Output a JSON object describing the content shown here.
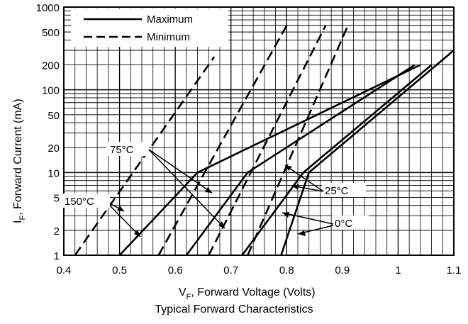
{
  "chart_data": {
    "type": "line",
    "title": "Typical Forward Characteristics",
    "xlabel": {
      "main": "V",
      "sub": "F",
      "rest": ",  Forward Voltage (Volts)"
    },
    "ylabel": {
      "main": "I",
      "sub": "F",
      "rest": ",  Forward Current (mA)"
    },
    "xlim": [
      0.4,
      1.1
    ],
    "ylim": [
      1,
      1000
    ],
    "yscale": "log",
    "grid": true,
    "legend_position": "top-left",
    "x_ticks": [
      0.4,
      0.5,
      0.6,
      0.7,
      0.8,
      0.9,
      1,
      1.1
    ],
    "x_tick_labels": [
      "0.4",
      "0.5",
      "0.6",
      "0.7",
      "0.8",
      "0.9",
      "1",
      "1.1"
    ],
    "y_ticks": [
      1,
      2,
      5,
      10,
      20,
      50,
      100,
      200,
      500,
      1000
    ],
    "y_tick_labels": [
      "1",
      "2",
      "5",
      "10",
      "20",
      "50",
      "100",
      "200",
      "500",
      "1000"
    ],
    "legend": [
      {
        "label": "Maximum",
        "style": "solid"
      },
      {
        "label": "Minimum",
        "style": "dashed"
      }
    ],
    "series": [
      {
        "temperature": "150°C",
        "style": "solid",
        "points": [
          [
            0.5,
            1
          ],
          [
            0.64,
            10
          ],
          [
            1.04,
            200
          ]
        ]
      },
      {
        "temperature": "75°C",
        "style": "solid",
        "points": [
          [
            0.62,
            1
          ],
          [
            0.73,
            10
          ],
          [
            1.03,
            200
          ]
        ]
      },
      {
        "temperature": "25°C",
        "style": "solid",
        "points": [
          [
            0.72,
            1
          ],
          [
            0.83,
            10
          ],
          [
            1.06,
            200
          ]
        ]
      },
      {
        "temperature": "0°C",
        "style": "solid",
        "points": [
          [
            0.79,
            1
          ],
          [
            0.84,
            10
          ],
          [
            1.1,
            300
          ]
        ]
      },
      {
        "temperature": "150°C",
        "style": "dashed",
        "points": [
          [
            0.42,
            1
          ],
          [
            0.67,
            250
          ]
        ]
      },
      {
        "temperature": "75°C",
        "style": "dashed",
        "points": [
          [
            0.57,
            1
          ],
          [
            0.8,
            600
          ]
        ]
      },
      {
        "temperature": "25°C",
        "style": "dashed",
        "points": [
          [
            0.66,
            1
          ],
          [
            0.87,
            600
          ]
        ]
      },
      {
        "temperature": "0°C",
        "style": "dashed",
        "points": [
          [
            0.73,
            1
          ],
          [
            0.91,
            600
          ]
        ]
      }
    ],
    "annotations": [
      "75°C",
      "150°C",
      "25°C",
      "0°C"
    ],
    "colors": {
      "line": "#000000",
      "grid": "#000000",
      "background": "#ffffff"
    }
  }
}
